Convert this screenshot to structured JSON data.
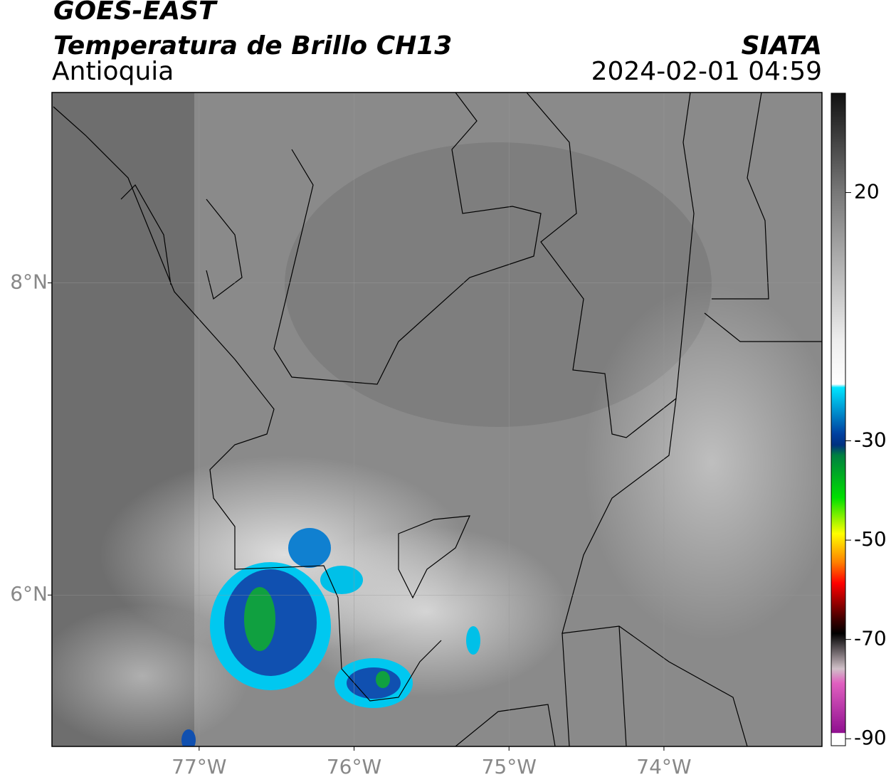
{
  "header": {
    "satellite": "GOES-EAST",
    "product": "Temperatura de Brillo CH13",
    "region": "Antioquia",
    "agency": "SIATA",
    "datetime": "2024-02-01 04:59"
  },
  "map": {
    "xlim": [
      -77.95,
      -72.98
    ],
    "ylim": [
      5.03,
      9.22
    ],
    "xticks": [
      {
        "value": -77,
        "label": "77°W"
      },
      {
        "value": -76,
        "label": "76°W"
      },
      {
        "value": -75,
        "label": "75°W"
      },
      {
        "value": -74,
        "label": "74°W"
      }
    ],
    "yticks": [
      {
        "value": 8,
        "label": "8°N"
      },
      {
        "value": 6,
        "label": "6°N"
      }
    ],
    "grid": true
  },
  "colorbar": {
    "lim": [
      -91.4,
      40
    ],
    "ticks": [
      20,
      -30,
      -50,
      -70,
      -90
    ]
  }
}
